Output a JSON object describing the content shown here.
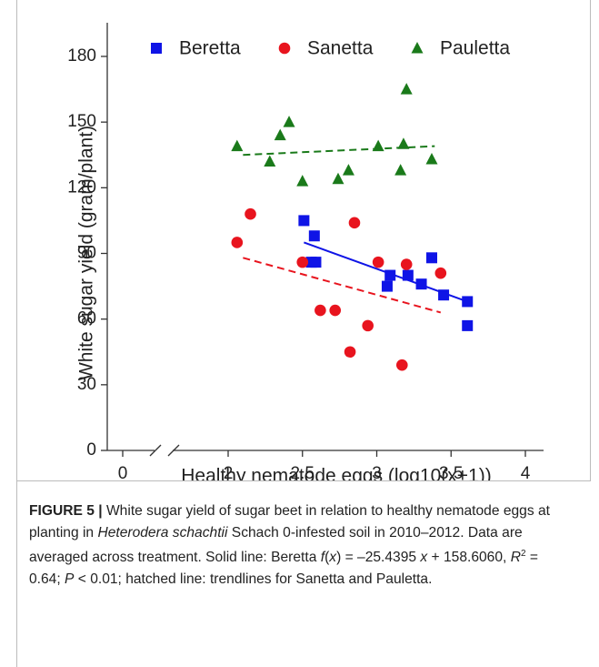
{
  "chart_data": {
    "type": "scatter",
    "xlabel": "Healthy nematode eggs (log10(x+1))",
    "ylabel": "White sugar yield (gram/plant)",
    "xlim": [
      0,
      4
    ],
    "ylim": [
      0,
      180
    ],
    "xticks": [
      0,
      2,
      2.5,
      3,
      3.5,
      4
    ],
    "yticks": [
      0,
      30,
      60,
      90,
      120,
      150,
      180
    ],
    "legend": "top",
    "series": [
      {
        "name": "Beretta",
        "color": "#0f14e6",
        "marker": "square",
        "x": [
          2.51,
          2.58,
          2.56,
          2.59,
          3.07,
          3.09,
          3.21,
          3.3,
          3.37,
          3.45,
          3.61,
          3.61
        ],
        "values": [
          105,
          98,
          86,
          86,
          75,
          80,
          80,
          76,
          88,
          71,
          57,
          68
        ]
      },
      {
        "name": "Sanetta",
        "color": "#e8141e",
        "marker": "circle",
        "x": [
          2.06,
          2.15,
          2.5,
          2.62,
          2.72,
          2.85,
          2.82,
          2.94,
          3.01,
          3.17,
          3.2,
          3.43
        ],
        "values": [
          95,
          108,
          86,
          64,
          64,
          104,
          45,
          57,
          86,
          39,
          85,
          81
        ]
      },
      {
        "name": "Pauletta",
        "color": "#1a7a1a",
        "marker": "triangle",
        "x": [
          2.06,
          2.28,
          2.35,
          2.41,
          2.5,
          2.74,
          2.81,
          3.01,
          3.16,
          3.18,
          3.2,
          3.37
        ],
        "values": [
          139,
          132,
          144,
          150,
          123,
          124,
          128,
          139,
          128,
          140,
          165,
          133
        ]
      }
    ],
    "trendlines": [
      {
        "color": "#0f14e6",
        "dashed": false,
        "x": [
          2.51,
          3.61
        ],
        "values": [
          95,
          68
        ]
      },
      {
        "color": "#e8141e",
        "dashed": true,
        "x": [
          2.1,
          3.43
        ],
        "values": [
          88,
          63
        ]
      },
      {
        "color": "#1a7a1a",
        "dashed": true,
        "x": [
          2.1,
          3.39
        ],
        "values": [
          135,
          139
        ]
      }
    ]
  },
  "caption": [
    "FIGURE 5 |",
    " White sugar yield of sugar beet in relation to healthy nematode eggs at planting in ",
    "Heterodera schachtii",
    " Schach 0-infested soil in 2010–2012. Data are averaged across treatment. Solid line: Beretta ",
    "f",
    "(",
    "x",
    ") = –25.4395 ",
    "x",
    " + 158.6060, ",
    "R",
    "2",
    " = 0.64; ",
    "P",
    " < 0.01; hatched line: trendlines for Sanetta and Pauletta."
  ]
}
